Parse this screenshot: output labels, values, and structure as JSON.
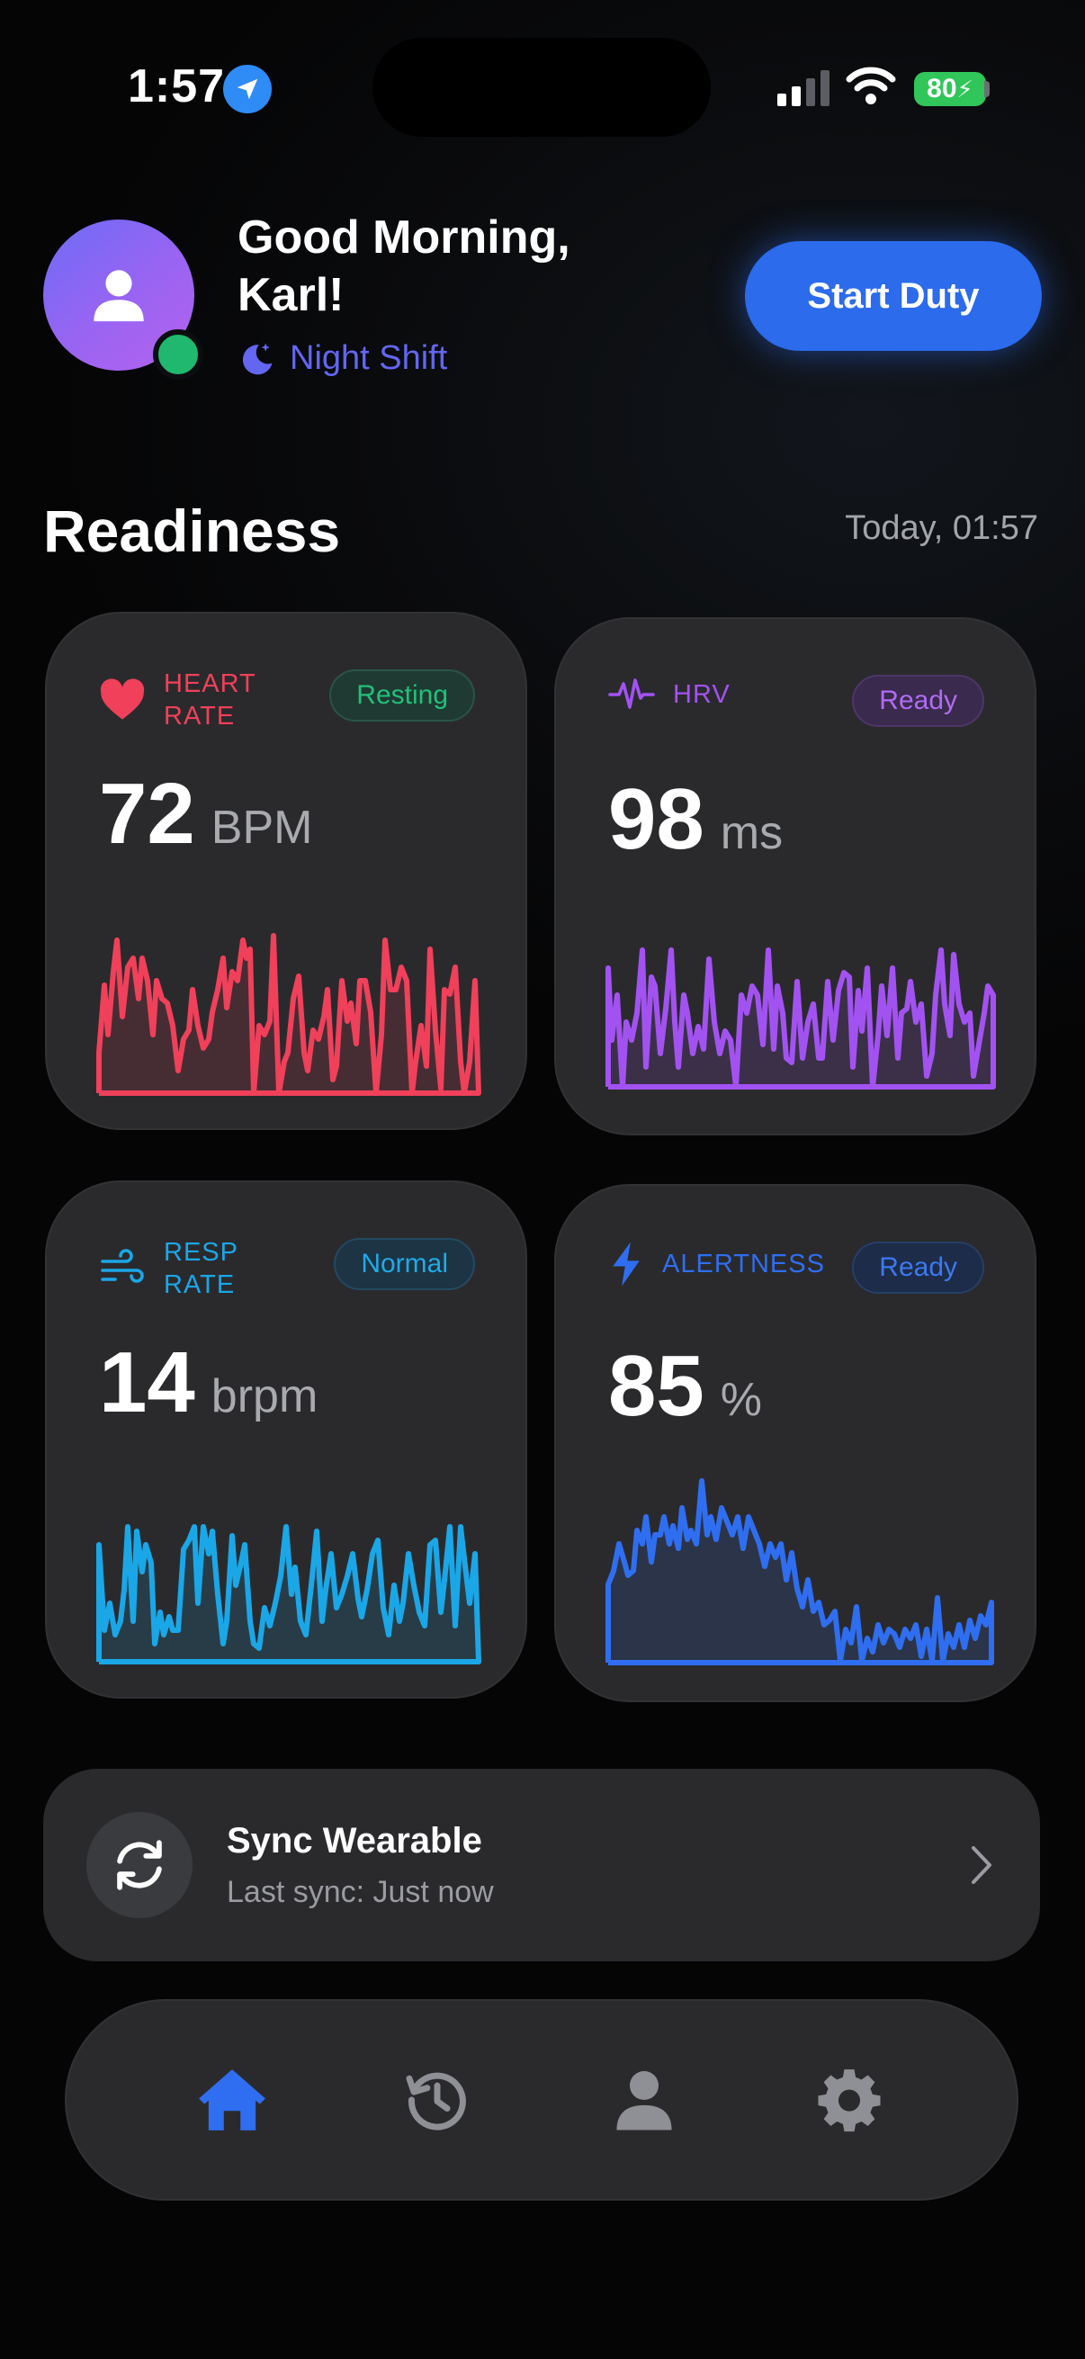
{
  "status_bar": {
    "time": "1:57",
    "battery": "80"
  },
  "header": {
    "greeting": "Good Morning, Karl!",
    "shift": "Night Shift",
    "start_button": "Start Duty"
  },
  "readiness": {
    "title": "Readiness",
    "timestamp": "Today, 01:57",
    "cards": [
      {
        "id": "heart-rate",
        "label_line1": "HEART",
        "label_line2": "RATE",
        "badge": "Resting",
        "value": "72",
        "unit": "BPM",
        "color": "#f0405a",
        "icon": "heart-icon"
      },
      {
        "id": "hrv",
        "label_line1": "HRV",
        "label_line2": "",
        "badge": "Ready",
        "value": "98",
        "unit": "ms",
        "color": "#a352f2",
        "icon": "pulse-icon"
      },
      {
        "id": "resp-rate",
        "label_line1": "RESP",
        "label_line2": "RATE",
        "badge": "Normal",
        "value": "14",
        "unit": "brpm",
        "color": "#1aa7e8",
        "icon": "wind-icon"
      },
      {
        "id": "alertness",
        "label_line1": "ALERTNESS",
        "label_line2": "",
        "badge": "Ready",
        "value": "85",
        "unit": "%",
        "color": "#2f6ef0",
        "icon": "bolt-icon"
      }
    ]
  },
  "sync": {
    "title": "Sync Wearable",
    "subtitle": "Last sync: Just now"
  },
  "tabbar": {
    "items": [
      {
        "icon": "home-icon",
        "active": true
      },
      {
        "icon": "history-icon",
        "active": false
      },
      {
        "icon": "profile-icon",
        "active": false
      },
      {
        "icon": "settings-icon",
        "active": false
      }
    ],
    "active_color": "#2f6ef0",
    "inactive_color": "#8e9095"
  }
}
